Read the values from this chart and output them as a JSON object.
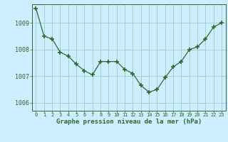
{
  "x": [
    0,
    1,
    2,
    3,
    4,
    5,
    6,
    7,
    8,
    9,
    10,
    11,
    12,
    13,
    14,
    15,
    16,
    17,
    18,
    19,
    20,
    21,
    22,
    23
  ],
  "y": [
    1009.55,
    1008.5,
    1008.4,
    1007.9,
    1007.75,
    1007.45,
    1007.2,
    1007.05,
    1007.55,
    1007.55,
    1007.55,
    1007.25,
    1007.1,
    1006.65,
    1006.4,
    1006.5,
    1006.95,
    1007.35,
    1007.55,
    1008.0,
    1008.1,
    1008.4,
    1008.85,
    1009.0
  ],
  "ylim": [
    1005.7,
    1009.7
  ],
  "yticks": [
    1006,
    1007,
    1008,
    1009
  ],
  "xticks": [
    0,
    1,
    2,
    3,
    4,
    5,
    6,
    7,
    8,
    9,
    10,
    11,
    12,
    13,
    14,
    15,
    16,
    17,
    18,
    19,
    20,
    21,
    22,
    23
  ],
  "line_color": "#2d6a2d",
  "marker_color": "#2d6a2d",
  "bg_color": "#cceeff",
  "grid_color": "#99cccc",
  "xlabel": "Graphe pression niveau de la mer (hPa)",
  "tick_color": "#2d6a2d",
  "axis_color": "#2d6a2d",
  "tick_fontsize": 5.0,
  "ytick_fontsize": 6.0,
  "xlabel_fontsize": 6.5
}
